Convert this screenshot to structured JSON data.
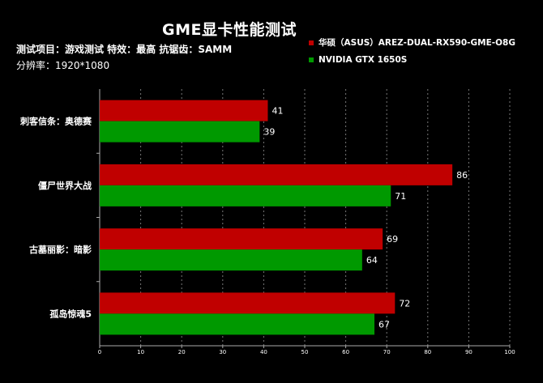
{
  "header": {
    "title": "GME显卡性能测试",
    "line1": "测试项目：游戏测试 特效：最高 抗锯齿：SAMM",
    "line2": "分辨率：1920*1080"
  },
  "chart_data": {
    "type": "bar",
    "orientation": "horizontal",
    "categories": [
      "刺客信条：奥德赛",
      "僵尸世界大战",
      "古墓丽影：暗影",
      "孤岛惊魂5"
    ],
    "series": [
      {
        "name": "华硕（ASUS）AREZ-DUAL-RX590-GME-O8G",
        "color": "#c00000",
        "values": [
          41,
          86,
          69,
          72
        ]
      },
      {
        "name": "NVIDIA GTX 1650S",
        "color": "#009900",
        "values": [
          39,
          71,
          64,
          67
        ]
      }
    ],
    "xlim": [
      0,
      100
    ],
    "xticks": [
      0,
      10,
      20,
      30,
      40,
      50,
      60,
      70,
      80,
      90,
      100
    ],
    "grid": true,
    "legend": "top-right",
    "data_labels": true
  }
}
